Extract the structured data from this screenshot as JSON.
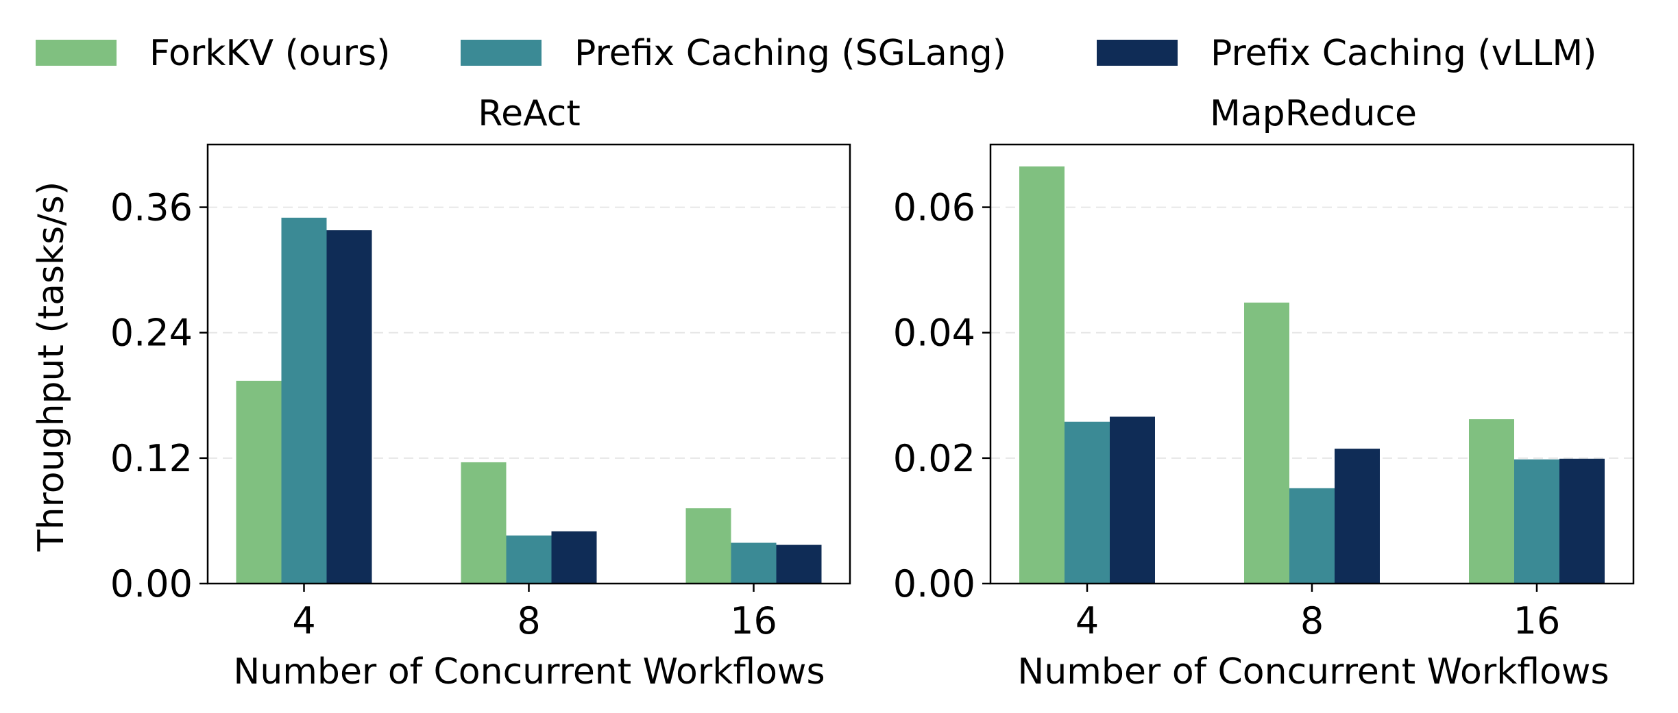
{
  "legend": {
    "placement": "top-center",
    "items": [
      {
        "label": "ForkKV (ours)",
        "color": "#80c080"
      },
      {
        "label": "Prefix Caching (SGLang)",
        "color": "#3b8a95"
      },
      {
        "label": "Prefix Caching (vLLM)",
        "color": "#0f2c56"
      }
    ]
  },
  "chart_data": [
    {
      "type": "bar",
      "title": "ReAct",
      "xlabel": "Number of Concurrent Workflows",
      "ylabel": "Throughput (tasks/s)",
      "categories": [
        "4",
        "8",
        "16"
      ],
      "ylim": [
        0,
        0.42
      ],
      "yticks": [
        0.0,
        0.12,
        0.24,
        0.36
      ],
      "ytick_labels": [
        "0.00",
        "0.12",
        "0.24",
        "0.36"
      ],
      "grid": "y dashed",
      "series": [
        {
          "name": "ForkKV (ours)",
          "color": "#80c080",
          "values": [
            0.194,
            0.116,
            0.072
          ]
        },
        {
          "name": "Prefix Caching (SGLang)",
          "color": "#3b8a95",
          "values": [
            0.35,
            0.046,
            0.039
          ]
        },
        {
          "name": "Prefix Caching (vLLM)",
          "color": "#0f2c56",
          "values": [
            0.338,
            0.05,
            0.037
          ]
        }
      ]
    },
    {
      "type": "bar",
      "title": "MapReduce",
      "xlabel": "Number of Concurrent Workflows",
      "ylabel": "",
      "categories": [
        "4",
        "8",
        "16"
      ],
      "ylim": [
        0,
        0.07
      ],
      "yticks": [
        0.0,
        0.02,
        0.04,
        0.06
      ],
      "ytick_labels": [
        "0.00",
        "0.02",
        "0.04",
        "0.06"
      ],
      "grid": "y dashed",
      "series": [
        {
          "name": "ForkKV (ours)",
          "color": "#80c080",
          "values": [
            0.0665,
            0.0448,
            0.0262
          ]
        },
        {
          "name": "Prefix Caching (SGLang)",
          "color": "#3b8a95",
          "values": [
            0.0258,
            0.0152,
            0.0198
          ]
        },
        {
          "name": "Prefix Caching (vLLM)",
          "color": "#0f2c56",
          "values": [
            0.0266,
            0.0215,
            0.0199
          ]
        }
      ]
    }
  ]
}
